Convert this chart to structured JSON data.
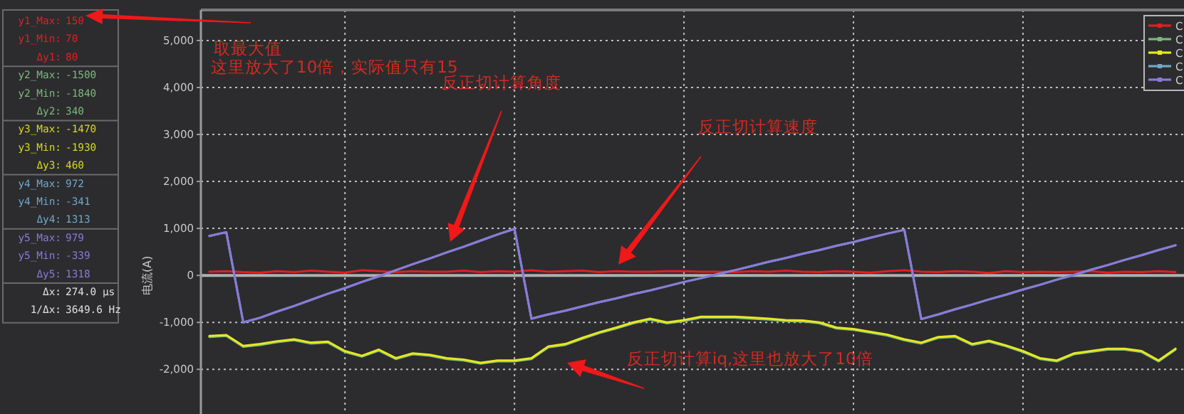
{
  "chart_data": [
    {
      "type": "other",
      "annotations": [
        "y1_Max: 150",
        "y1_Min: 70",
        "Δy1: 80",
        "y2_Max: -1500",
        "y2_Min: -1840",
        "Δy2: 340",
        "y3_Max: -1470",
        "y3_Min: -1930",
        "Δy3: 460",
        "y4_Max: 972",
        "y4_Min: -341",
        "Δy4: 1313",
        "y5_Max: 979",
        "y5_Min: -339",
        "Δy5: 1318",
        "Δx: 274.0 µs",
        "1/Δx: 3649.6 Hz"
      ],
      "colors": [
        "#e02020",
        "#e02020",
        "#e02020",
        "#7ab87a",
        "#7ab87a",
        "#7ab87a",
        "#d8d820",
        "#d8d820",
        "#d8d820",
        "#6fa8c8",
        "#6fa8c8",
        "#6fa8c8",
        "#8a7ad8",
        "#8a7ad8",
        "#8a7ad8",
        "#e0e0e0",
        "#e0e0e0"
      ]
    },
    {
      "type": "line",
      "ylabel": "电流(A)",
      "tick_labels": "y",
      "grid": true,
      "legend": "top right",
      "ylim": [
        -2950,
        5650
      ],
      "yticks": [
        {
          "value": -2000,
          "label": "-2,000"
        },
        {
          "value": -1000,
          "label": "-1,000"
        },
        0,
        {
          "value": 1000,
          "label": "1,000"
        },
        {
          "value": 2000,
          "label": "2,000"
        },
        {
          "value": 3000,
          "label": "3,000"
        },
        {
          "value": 4000,
          "label": "4,000"
        },
        {
          "value": 5000,
          "label": "5,000"
        }
      ],
      "categories": [
        null,
        null,
        null,
        null,
        null,
        null,
        null,
        null,
        null,
        null,
        null,
        null,
        null,
        null,
        null,
        null,
        null,
        null,
        null,
        null,
        null,
        null,
        null,
        null,
        null,
        null,
        null,
        null,
        null,
        null,
        null,
        null,
        null,
        null,
        null,
        null,
        null,
        null,
        null,
        null,
        null,
        null,
        null,
        null,
        null,
        null,
        null,
        null,
        null,
        null,
        null,
        null,
        null,
        null,
        null,
        null,
        null,
        null
      ],
      "series": [
        {
          "name": "C",
          "color": "#e02020",
          "values": [
            80,
            90,
            70,
            60,
            90,
            70,
            100,
            80,
            60,
            110,
            90,
            70,
            90,
            80,
            80,
            100,
            70,
            90,
            80,
            110,
            80,
            90,
            100,
            70,
            90,
            80,
            80,
            90,
            90,
            80,
            80,
            70,
            90,
            80,
            100,
            80,
            70,
            90,
            80,
            60,
            90,
            110,
            80,
            70,
            90,
            80,
            50,
            90,
            70,
            80,
            70,
            80,
            90,
            60,
            80,
            70,
            90,
            70
          ]
        },
        {
          "name": "C",
          "color": "#7ab87a",
          "values": [
            -1310,
            -1290,
            -1520,
            -1480,
            -1420,
            -1380,
            -1450,
            -1430,
            -1630,
            -1730,
            -1600,
            -1780,
            -1680,
            -1710,
            -1780,
            -1810,
            -1880,
            -1830,
            -1830,
            -1780,
            -1530,
            -1480,
            -1350,
            -1230,
            -1130,
            -1020,
            -940,
            -1020,
            -970,
            -900,
            -900,
            -900,
            -920,
            -940,
            -970,
            -980,
            -1020,
            -1130,
            -1160,
            -1220,
            -1280,
            -1380,
            -1450,
            -1330,
            -1310,
            -1480,
            -1410,
            -1510,
            -1630,
            -1780,
            -1830,
            -1680,
            -1630,
            -1580,
            -1580,
            -1630,
            -1830,
            -1580
          ]
        },
        {
          "name": "C",
          "color": "#e8e820",
          "values": [
            -1290,
            -1270,
            -1500,
            -1460,
            -1400,
            -1360,
            -1430,
            -1410,
            -1610,
            -1710,
            -1580,
            -1760,
            -1660,
            -1690,
            -1760,
            -1790,
            -1860,
            -1810,
            -1810,
            -1760,
            -1510,
            -1460,
            -1330,
            -1210,
            -1110,
            -1000,
            -920,
            -1000,
            -950,
            -880,
            -880,
            -880,
            -900,
            -920,
            -950,
            -960,
            -1000,
            -1110,
            -1140,
            -1200,
            -1260,
            -1360,
            -1430,
            -1310,
            -1290,
            -1460,
            -1390,
            -1490,
            -1610,
            -1760,
            -1810,
            -1660,
            -1610,
            -1560,
            -1560,
            -1610,
            -1810,
            -1560
          ]
        },
        {
          "name": "C",
          "color": "#6fa8c8",
          "values": [
            840,
            920,
            -1000,
            -900,
            -770,
            -650,
            -520,
            -390,
            -270,
            -140,
            -20,
            110,
            240,
            360,
            490,
            610,
            740,
            870,
            990,
            -920,
            -830,
            -750,
            -660,
            -570,
            -490,
            -400,
            -320,
            -230,
            -140,
            -60,
            30,
            110,
            200,
            290,
            370,
            460,
            540,
            630,
            710,
            800,
            890,
            970,
            -930,
            -830,
            -720,
            -620,
            -510,
            -410,
            -300,
            -200,
            -90,
            10,
            120,
            220,
            330,
            430,
            540,
            640
          ]
        },
        {
          "name": "C",
          "color": "#8a7ad8",
          "values": [
            840,
            920,
            -1000,
            -900,
            -770,
            -650,
            -520,
            -390,
            -270,
            -140,
            -20,
            110,
            240,
            360,
            490,
            610,
            740,
            870,
            990,
            -920,
            -830,
            -750,
            -660,
            -570,
            -490,
            -400,
            -320,
            -230,
            -140,
            -60,
            30,
            110,
            200,
            290,
            370,
            460,
            540,
            630,
            710,
            800,
            890,
            970,
            -930,
            -830,
            -720,
            -620,
            -510,
            -410,
            -300,
            -200,
            -90,
            10,
            120,
            220,
            330,
            430,
            540,
            640
          ]
        }
      ],
      "annotations": [
        "取最大值",
        "这里放大了10倍，实际值只有15",
        "反正切计算角度",
        "反正切计算速度",
        "反正切计算iq,这里也放大了10倍"
      ]
    }
  ]
}
